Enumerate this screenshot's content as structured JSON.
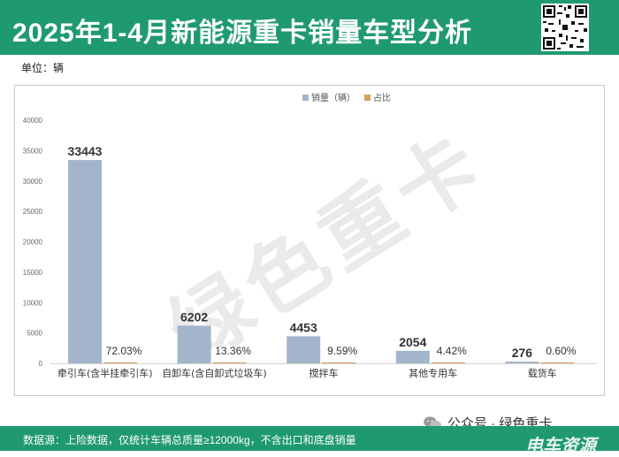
{
  "header": {
    "title": "2025年1-4月新能源重卡销量车型分析"
  },
  "unit_label": "单位：辆",
  "watermark": "绿色重卡",
  "footer": {
    "note": "数据源：上险数据，仅统计车辆总质量≥12000kg，不含出口和底盘销量",
    "wechat": "公众号 · 绿色重卡",
    "brand": "电车资源"
  },
  "colors": {
    "header": "#1f9a6f",
    "bar_sales": "#a3b5cc",
    "bar_share": "#d6a15e"
  },
  "chart_data": {
    "type": "bar",
    "categories": [
      "牵引车(含半挂牵引车)",
      "自卸车(含自卸式垃圾车)",
      "搅拌车",
      "其他专用车",
      "载货车"
    ],
    "series": [
      {
        "name": "销量（辆）",
        "values": [
          33443,
          6202,
          4453,
          2054,
          276
        ],
        "labels": [
          "33443",
          "6202",
          "4453",
          "2054",
          "276"
        ]
      },
      {
        "name": "占比",
        "values": [
          72.03,
          13.36,
          9.59,
          4.42,
          0.6
        ],
        "labels": [
          "72.03%",
          "13.36%",
          "9.59%",
          "4.42%",
          "0.60%"
        ]
      }
    ],
    "ylim": [
      0,
      40000
    ],
    "yticks": [
      "0",
      "5000",
      "10000",
      "15000",
      "20000",
      "25000",
      "30000",
      "35000",
      "40000"
    ],
    "legend_position": "top-center",
    "grid": false
  }
}
